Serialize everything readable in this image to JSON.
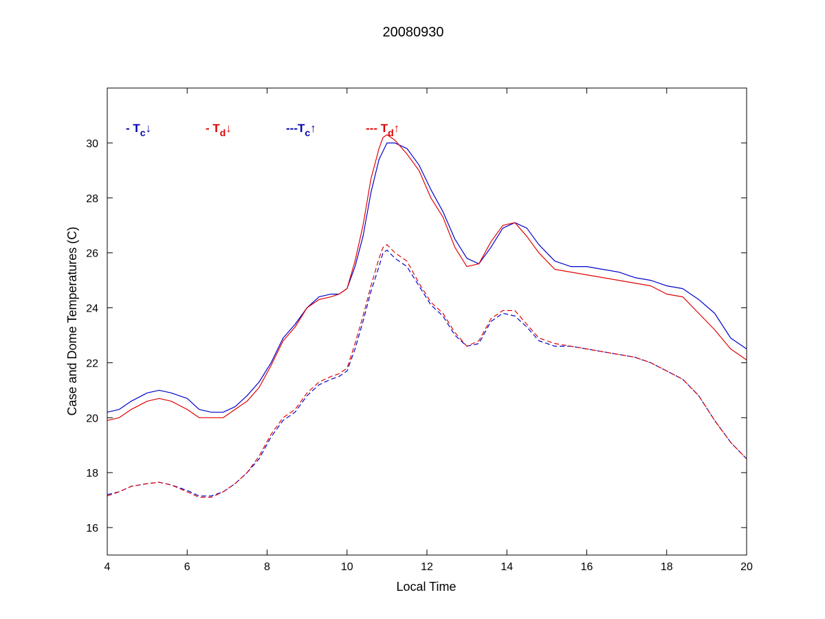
{
  "chart_data": {
    "type": "line",
    "title": "20080930",
    "xlabel": "Local Time",
    "ylabel": "Case and Dome Temperatures (C)",
    "xlim": [
      4,
      20
    ],
    "ylim": [
      15,
      32
    ],
    "xticks": [
      4,
      6,
      8,
      10,
      12,
      14,
      16,
      18,
      20
    ],
    "yticks": [
      16,
      18,
      20,
      22,
      24,
      26,
      28,
      30
    ],
    "grid": false,
    "legend": {
      "placement": "top-left",
      "entries": [
        {
          "prefix": "- ",
          "symbol": "T",
          "sub": "c",
          "arrow": "↓",
          "color": "#0000b0"
        },
        {
          "prefix": "- ",
          "symbol": "T",
          "sub": "d",
          "arrow": "↓",
          "color": "#e00000"
        },
        {
          "prefix": "---",
          "symbol": "T",
          "sub": "c",
          "arrow": "↑",
          "color": "#0000b0"
        },
        {
          "prefix": "--- ",
          "symbol": "T",
          "sub": "d",
          "arrow": "↑",
          "color": "#e00000"
        }
      ]
    },
    "series": [
      {
        "color": "#0000cc",
        "dash": "solid",
        "x": [
          4.0,
          4.3,
          4.6,
          5.0,
          5.3,
          5.6,
          6.0,
          6.3,
          6.6,
          6.9,
          7.2,
          7.5,
          7.8,
          8.1,
          8.4,
          8.7,
          9.0,
          9.3,
          9.6,
          9.8,
          10.0,
          10.2,
          10.4,
          10.6,
          10.8,
          11.0,
          11.2,
          11.5,
          11.8,
          12.1,
          12.4,
          12.7,
          13.0,
          13.3,
          13.6,
          13.9,
          14.2,
          14.5,
          14.8,
          15.2,
          15.6,
          16.0,
          16.4,
          16.8,
          17.2,
          17.6,
          18.0,
          18.4,
          18.8,
          19.2,
          19.6,
          20.0
        ],
        "y": [
          20.2,
          20.3,
          20.6,
          20.9,
          21.0,
          20.9,
          20.7,
          20.3,
          20.2,
          20.2,
          20.4,
          20.8,
          21.3,
          22.0,
          22.9,
          23.4,
          24.0,
          24.4,
          24.5,
          24.5,
          24.7,
          25.5,
          26.6,
          28.2,
          29.4,
          30.0,
          30.0,
          29.8,
          29.2,
          28.3,
          27.5,
          26.5,
          25.8,
          25.6,
          26.2,
          26.9,
          27.1,
          26.9,
          26.3,
          25.7,
          25.5,
          25.5,
          25.4,
          25.3,
          25.1,
          25.0,
          24.8,
          24.7,
          24.3,
          23.8,
          22.9,
          22.5
        ]
      },
      {
        "color": "#e00000",
        "dash": "solid",
        "x": [
          4.0,
          4.3,
          4.6,
          5.0,
          5.3,
          5.6,
          6.0,
          6.3,
          6.6,
          6.9,
          7.2,
          7.5,
          7.8,
          8.1,
          8.4,
          8.7,
          9.0,
          9.3,
          9.6,
          9.8,
          10.0,
          10.2,
          10.4,
          10.6,
          10.8,
          10.9,
          11.0,
          11.2,
          11.5,
          11.8,
          12.1,
          12.4,
          12.7,
          13.0,
          13.3,
          13.6,
          13.9,
          14.2,
          14.5,
          14.8,
          15.2,
          15.6,
          16.0,
          16.4,
          16.8,
          17.2,
          17.6,
          18.0,
          18.4,
          18.8,
          19.2,
          19.6,
          20.0
        ],
        "y": [
          19.9,
          20.0,
          20.3,
          20.6,
          20.7,
          20.6,
          20.3,
          20.0,
          20.0,
          20.0,
          20.3,
          20.6,
          21.1,
          21.9,
          22.8,
          23.3,
          24.0,
          24.3,
          24.4,
          24.5,
          24.7,
          25.7,
          27.0,
          28.7,
          29.8,
          30.2,
          30.3,
          30.1,
          29.6,
          29.0,
          28.0,
          27.3,
          26.2,
          25.5,
          25.6,
          26.4,
          27.0,
          27.1,
          26.6,
          26.0,
          25.4,
          25.3,
          25.2,
          25.1,
          25.0,
          24.9,
          24.8,
          24.5,
          24.4,
          23.8,
          23.2,
          22.5,
          22.1
        ]
      },
      {
        "color": "#0000cc",
        "dash": "dashed",
        "x": [
          4.0,
          4.3,
          4.6,
          5.0,
          5.3,
          5.6,
          6.0,
          6.3,
          6.6,
          6.9,
          7.2,
          7.5,
          7.8,
          8.1,
          8.4,
          8.7,
          9.0,
          9.3,
          9.6,
          9.8,
          10.0,
          10.2,
          10.4,
          10.6,
          10.8,
          10.9,
          11.0,
          11.2,
          11.5,
          11.8,
          12.1,
          12.4,
          12.7,
          13.0,
          13.3,
          13.6,
          13.9,
          14.2,
          14.5,
          14.8,
          15.2,
          15.6,
          16.0,
          16.4,
          16.8,
          17.2,
          17.6,
          18.0,
          18.4,
          18.8,
          19.2,
          19.6,
          20.0
        ],
        "y": [
          17.2,
          17.3,
          17.5,
          17.6,
          17.65,
          17.55,
          17.35,
          17.15,
          17.15,
          17.3,
          17.6,
          18.0,
          18.5,
          19.3,
          19.9,
          20.2,
          20.8,
          21.2,
          21.4,
          21.5,
          21.7,
          22.5,
          23.5,
          24.6,
          25.5,
          26.0,
          26.1,
          25.8,
          25.5,
          24.8,
          24.1,
          23.7,
          23.0,
          22.6,
          22.7,
          23.5,
          23.8,
          23.7,
          23.3,
          22.8,
          22.6,
          22.6,
          22.5,
          22.4,
          22.3,
          22.2,
          22.0,
          21.7,
          21.4,
          20.8,
          19.9,
          19.1,
          18.5
        ]
      },
      {
        "color": "#e00000",
        "dash": "dashed",
        "x": [
          4.0,
          4.3,
          4.6,
          5.0,
          5.3,
          5.6,
          6.0,
          6.3,
          6.6,
          6.9,
          7.2,
          7.5,
          7.8,
          8.1,
          8.4,
          8.7,
          9.0,
          9.3,
          9.6,
          9.8,
          10.0,
          10.2,
          10.4,
          10.6,
          10.8,
          10.9,
          11.0,
          11.2,
          11.5,
          11.8,
          12.1,
          12.4,
          12.7,
          13.0,
          13.3,
          13.6,
          13.9,
          14.2,
          14.5,
          14.8,
          15.2,
          15.6,
          16.0,
          16.4,
          16.8,
          17.2,
          17.6,
          18.0,
          18.4,
          18.8,
          19.2,
          19.6,
          20.0
        ],
        "y": [
          17.15,
          17.3,
          17.5,
          17.6,
          17.65,
          17.55,
          17.3,
          17.1,
          17.1,
          17.3,
          17.6,
          18.0,
          18.6,
          19.4,
          20.0,
          20.3,
          20.9,
          21.3,
          21.5,
          21.6,
          21.8,
          22.7,
          23.7,
          24.8,
          25.8,
          26.2,
          26.3,
          26.0,
          25.7,
          24.9,
          24.2,
          23.8,
          23.1,
          22.6,
          22.8,
          23.6,
          23.9,
          23.9,
          23.4,
          22.9,
          22.7,
          22.6,
          22.5,
          22.4,
          22.3,
          22.2,
          22.0,
          21.7,
          21.4,
          20.8,
          19.9,
          19.1,
          18.5
        ]
      }
    ]
  }
}
